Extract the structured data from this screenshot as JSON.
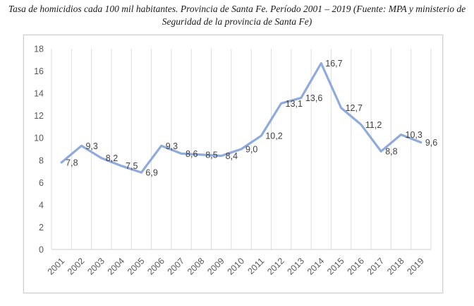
{
  "title": "Tasa de homicidios cada 100 mil habitantes. Provincia de Santa Fe. Período 2001 – 2019 (Fuente: MPA y ministerio de Seguridad de la provincia de Santa Fe)",
  "chart_data": {
    "type": "line",
    "title": "Tasa de homicidios cada 100 mil habitantes. Provincia de Santa Fe. Período 2001 – 2019 (Fuente: MPA y ministerio de Seguridad de la provincia de Santa Fe)",
    "categories": [
      "2001",
      "2002",
      "2003",
      "2004",
      "2005",
      "2006",
      "2007",
      "2008",
      "2009",
      "2010",
      "2011",
      "2012",
      "2013",
      "2014",
      "2015",
      "2016",
      "2017",
      "2018",
      "2019"
    ],
    "series": [
      {
        "name": "Tasa de homicidios cada 100 mil habitantes",
        "values": [
          7.8,
          9.3,
          8.2,
          7.5,
          6.9,
          9.3,
          8.6,
          8.5,
          8.4,
          9.0,
          10.2,
          13.1,
          13.6,
          16.7,
          12.7,
          11.2,
          8.8,
          10.3,
          9.6
        ]
      }
    ],
    "data_labels": [
      "7,8",
      "9,3",
      "8,2",
      "7,5",
      "6,9",
      "9,3",
      "8,6",
      "8,5",
      "8,4",
      "9,0",
      "10,2",
      "13,1",
      "13,6",
      "16,7",
      "12,7",
      "11,2",
      "8,8",
      "10,3",
      "9,6"
    ],
    "xlabel": "",
    "ylabel": "",
    "ylim": [
      0,
      18
    ],
    "y_ticks": [
      0,
      2,
      4,
      6,
      8,
      10,
      12,
      14,
      16,
      18
    ],
    "grid": "vertical-only",
    "legend_position": "none",
    "colors": {
      "line": "#8faadc",
      "gridline": "#dedede",
      "axis_line": "#d6d6d6",
      "tick_label": "#595959",
      "data_label": "#404040"
    }
  }
}
